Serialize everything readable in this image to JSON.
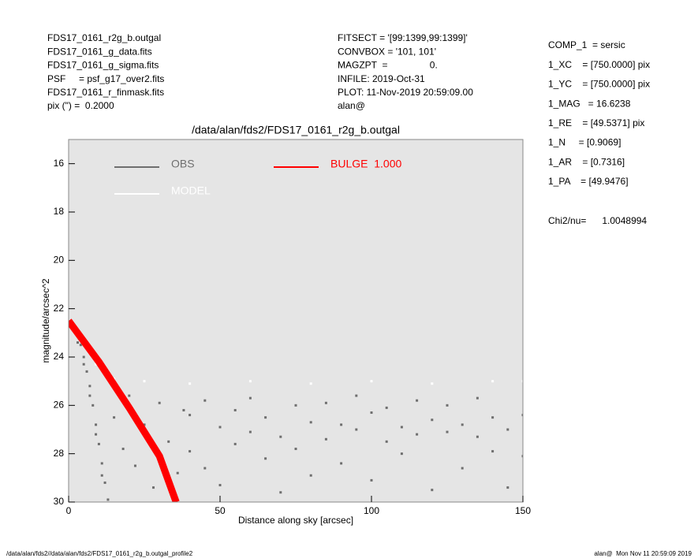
{
  "info_left": [
    "FDS17_0161_r2g_b.outgal",
    "FDS17_0161_g_data.fits",
    "FDS17_0161_g_sigma.fits",
    "PSF     = psf_g17_over2.fits",
    "FDS17_0161_r_finmask.fits",
    "pix (\") =  0.2000"
  ],
  "info_mid": [
    "FITSECT = '[99:1399,99:1399]'",
    "CONVBOX = '101, 101'",
    "MAGZPT  =                0.",
    "INFILE: 2019-Oct-31",
    "PLOT: 11-Nov-2019 20:59:09.00",
    "alan@"
  ],
  "info_right": [
    "COMP_1  = sersic",
    "1_XC    = [750.0000] pix",
    "1_YC    = [750.0000] pix",
    "1_MAG   = 16.6238",
    "1_RE    = [49.5371] pix",
    "1_N     = [0.9069]",
    "1_AR    = [0.7316]",
    "1_PA    = [49.9476]",
    "Chi2/nu=      1.0048994"
  ],
  "footer_left": "/data/alan/fds2//data/alan/fds2/FDS17_0161_r2g_b.outgal_profile2",
  "footer_right": "alan@  Mon Nov 11 20:59:09 2019",
  "chart_data": {
    "type": "scatter",
    "title": "/data/alan/fds2/FDS17_0161_r2g_b.outgal",
    "x_label": "Distance along sky [arcsec]",
    "y_label": "magnitude/arcsec^2",
    "xlim": [
      0,
      150
    ],
    "xticks": [
      0,
      50,
      100,
      150
    ],
    "ylim": [
      30,
      15
    ],
    "yticks": [
      16,
      18,
      20,
      22,
      24,
      26,
      28,
      30
    ],
    "background": "#e5e5e5",
    "series": [
      {
        "name": "OBS",
        "color": "#6e6e6e",
        "kind": "points",
        "x": [
          1,
          2,
          3,
          4,
          5,
          6,
          7,
          8,
          9,
          10,
          11,
          12,
          13,
          3,
          5,
          7,
          9,
          11,
          15,
          18,
          20,
          22,
          25,
          28,
          30,
          33,
          36,
          38,
          40,
          40,
          45,
          45,
          50,
          50,
          55,
          55,
          60,
          60,
          65,
          65,
          70,
          70,
          75,
          75,
          80,
          80,
          85,
          85,
          90,
          90,
          95,
          95,
          100,
          100,
          105,
          105,
          110,
          110,
          115,
          115,
          120,
          120,
          125,
          125,
          130,
          130,
          135,
          135,
          140,
          140,
          145,
          145,
          150,
          150
        ],
        "values": [
          22.6,
          22.8,
          23.1,
          23.5,
          24.0,
          24.6,
          25.2,
          26.0,
          26.8,
          27.6,
          28.4,
          29.2,
          29.9,
          23.4,
          24.3,
          25.6,
          27.2,
          28.9,
          26.5,
          27.8,
          25.6,
          28.5,
          26.8,
          29.4,
          25.9,
          27.5,
          28.8,
          26.2,
          26.4,
          27.9,
          25.8,
          28.6,
          26.9,
          29.3,
          26.2,
          27.6,
          27.1,
          25.7,
          26.5,
          28.2,
          27.3,
          29.6,
          26.0,
          27.8,
          26.7,
          28.9,
          25.9,
          27.4,
          26.8,
          28.4,
          27.0,
          25.6,
          26.3,
          29.1,
          27.5,
          26.1,
          26.9,
          28.0,
          27.2,
          25.8,
          26.6,
          29.5,
          27.1,
          26.0,
          26.8,
          28.6,
          27.3,
          25.7,
          26.5,
          27.9,
          27.0,
          29.4,
          26.4,
          28.1
        ]
      },
      {
        "name": "MODEL",
        "color": "#ffffff",
        "kind": "points",
        "x": [
          0.5,
          3,
          6,
          9,
          12,
          15,
          25,
          40,
          60,
          80,
          100,
          120,
          140,
          150
        ],
        "values": [
          22.5,
          22.9,
          23.6,
          24.3,
          24.7,
          24.9,
          25.0,
          25.1,
          25.0,
          25.1,
          25.0,
          25.1,
          25.0,
          25.0
        ]
      },
      {
        "name": "BULGE  1.000",
        "color": "#ff0000",
        "kind": "line",
        "x": [
          0,
          10,
          20,
          30,
          35.5
        ],
        "values": [
          22.5,
          24.2,
          26.1,
          28.1,
          30
        ]
      }
    ]
  }
}
